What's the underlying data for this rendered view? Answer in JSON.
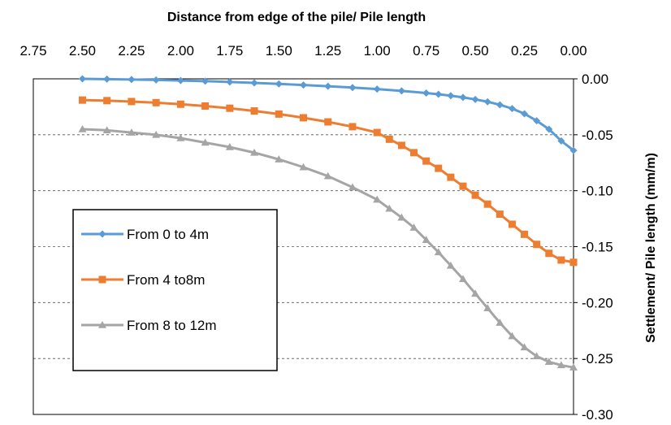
{
  "chart_data": {
    "type": "line",
    "xlabel": "Distance from edge of the pile/ Pile length",
    "ylabel": "Settlement/ Pile length (mm/m)",
    "xlim": [
      2.75,
      0.0
    ],
    "ylim": [
      -0.3,
      0.0
    ],
    "x_axis_position": "top",
    "y_axis_position": "right",
    "x_reversed": true,
    "grid": "dashed horizontal",
    "legend_position": "left-center",
    "x_ticks": [
      "2.75",
      "2.50",
      "2.25",
      "2.00",
      "1.75",
      "1.50",
      "1.25",
      "1.00",
      "0.75",
      "0.50",
      "0.25",
      "0.00"
    ],
    "y_ticks": [
      "0.00",
      "-0.05",
      "-0.10",
      "-0.15",
      "-0.20",
      "-0.25",
      "-0.30"
    ],
    "series": [
      {
        "name": "From 0 to 4m",
        "color": "#5B9BD5",
        "marker": "diamond",
        "x": [
          2.5,
          2.375,
          2.25,
          2.125,
          2.0,
          1.875,
          1.75,
          1.625,
          1.5,
          1.375,
          1.25,
          1.125,
          1.0,
          0.875,
          0.75,
          0.6875,
          0.625,
          0.5625,
          0.5,
          0.4375,
          0.375,
          0.3125,
          0.25,
          0.1875,
          0.125,
          0.0625,
          0.0
        ],
        "y": [
          -0.0,
          -0.0003,
          -0.0006,
          -0.001,
          -0.0015,
          -0.0021,
          -0.0028,
          -0.0036,
          -0.0045,
          -0.0055,
          -0.0066,
          -0.0078,
          -0.0092,
          -0.0108,
          -0.0127,
          -0.0138,
          -0.0151,
          -0.0166,
          -0.0184,
          -0.0205,
          -0.0232,
          -0.0266,
          -0.0312,
          -0.0375,
          -0.045,
          -0.0555,
          -0.064
        ]
      },
      {
        "name": "From 4 to8m",
        "color": "#ED7D31",
        "marker": "square",
        "x": [
          2.5,
          2.375,
          2.25,
          2.125,
          2.0,
          1.875,
          1.75,
          1.625,
          1.5,
          1.375,
          1.25,
          1.125,
          1.0,
          0.9375,
          0.875,
          0.8125,
          0.75,
          0.6875,
          0.625,
          0.5625,
          0.5,
          0.4375,
          0.375,
          0.3125,
          0.25,
          0.1875,
          0.125,
          0.0625,
          0.0
        ],
        "y": [
          -0.019,
          -0.0195,
          -0.0203,
          -0.0213,
          -0.0227,
          -0.0243,
          -0.0263,
          -0.0287,
          -0.0315,
          -0.0348,
          -0.0385,
          -0.0428,
          -0.048,
          -0.054,
          -0.0595,
          -0.066,
          -0.0735,
          -0.08,
          -0.088,
          -0.096,
          -0.104,
          -0.112,
          -0.121,
          -0.13,
          -0.139,
          -0.148,
          -0.156,
          -0.162,
          -0.164
        ]
      },
      {
        "name": "From 8 to 12m",
        "color": "#A5A5A5",
        "marker": "triangle",
        "x": [
          2.5,
          2.375,
          2.25,
          2.125,
          2.0,
          1.875,
          1.75,
          1.625,
          1.5,
          1.375,
          1.25,
          1.125,
          1.0,
          0.9375,
          0.875,
          0.8125,
          0.75,
          0.6875,
          0.625,
          0.5625,
          0.5,
          0.4375,
          0.375,
          0.3125,
          0.25,
          0.1875,
          0.125,
          0.0625,
          0.0
        ],
        "y": [
          -0.045,
          -0.046,
          -0.048,
          -0.05,
          -0.053,
          -0.057,
          -0.061,
          -0.066,
          -0.072,
          -0.079,
          -0.087,
          -0.097,
          -0.108,
          -0.116,
          -0.124,
          -0.133,
          -0.144,
          -0.155,
          -0.167,
          -0.179,
          -0.192,
          -0.205,
          -0.218,
          -0.23,
          -0.24,
          -0.248,
          -0.253,
          -0.256,
          -0.258
        ]
      }
    ]
  }
}
